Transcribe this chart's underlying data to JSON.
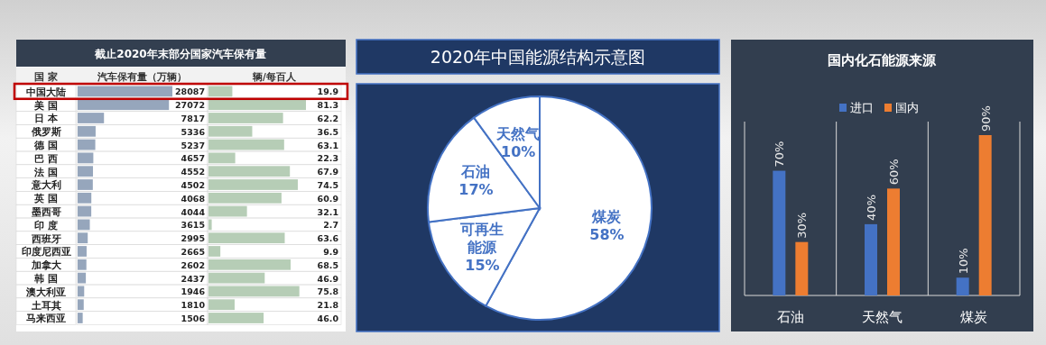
{
  "chart_data": [
    {
      "type": "bar",
      "orientation": "horizontal",
      "title": "截止2020年末部分国家汽车保有量",
      "ylabel": "国 家",
      "xlabel": "汽车保有量（万辆）",
      "color": "#8497b0",
      "categories": [
        "中国大陆",
        "美 国",
        "日 本",
        "俄罗斯",
        "德 国",
        "巴 西",
        "法 国",
        "意大利",
        "英 国",
        "墨西哥",
        "印 度",
        "西班牙",
        "印度尼西亚",
        "加拿大",
        "韩 国",
        "澳大利亚",
        "土耳其",
        "马来西亚"
      ],
      "values": [
        28087,
        27072,
        7817,
        5336,
        5237,
        4657,
        4552,
        4502,
        4068,
        4044,
        3615,
        2995,
        2665,
        2602,
        2437,
        1946,
        1810,
        1506
      ],
      "data_labels": true
    },
    {
      "type": "bar",
      "orientation": "horizontal",
      "xlabel": "辆/每百人",
      "color": "#a9c4a9",
      "tick_labels": false,
      "categories": [
        "中国大陆",
        "美 国",
        "日 本",
        "俄罗斯",
        "德 国",
        "巴 西",
        "法 国",
        "意大利",
        "英 国",
        "墨西哥",
        "印 度",
        "西班牙",
        "印度尼西亚",
        "加拿大",
        "韩 国",
        "澳大利亚",
        "土耳其",
        "马来西亚"
      ],
      "values": [
        19.9,
        81.3,
        62.2,
        36.5,
        63.1,
        22.3,
        67.9,
        74.5,
        60.9,
        32.1,
        2.7,
        63.6,
        9.9,
        68.5,
        46.9,
        75.8,
        21.8,
        46.0
      ],
      "value_labels": [
        "19.9",
        "81.3",
        "62.2",
        "36.5",
        "63.1",
        "22.3",
        "67.9",
        "74.5",
        "60.9",
        "32.1",
        "2.7",
        "63.6",
        "9.9",
        "68.5",
        "46.9",
        "75.8",
        "21.8",
        "46.0"
      ]
    },
    {
      "type": "pie",
      "title": "2020年中国能源结构示意图",
      "categories": [
        "煤炭",
        "可再生能源",
        "石油",
        "天然气"
      ],
      "values": [
        58,
        15,
        17,
        10
      ],
      "colors": [
        "#ffffff",
        "#ffffff",
        "#ffffff",
        "#ffffff"
      ],
      "value_labels": [
        "58%",
        "15%",
        "17%",
        "10%"
      ]
    },
    {
      "type": "bar",
      "title": "国内化石能源来源",
      "categories": [
        "石油",
        "天然气",
        "煤炭"
      ],
      "legend": "top",
      "series": [
        {
          "name": "进口",
          "color": "#4472c4",
          "values": [
            70,
            40,
            10
          ],
          "value_labels": [
            "70%",
            "40%",
            "10%"
          ]
        },
        {
          "name": "国内",
          "color": "#ed7d31",
          "values": [
            30,
            60,
            90
          ],
          "value_labels": [
            "30%",
            "60%",
            "90%"
          ]
        }
      ]
    }
  ]
}
